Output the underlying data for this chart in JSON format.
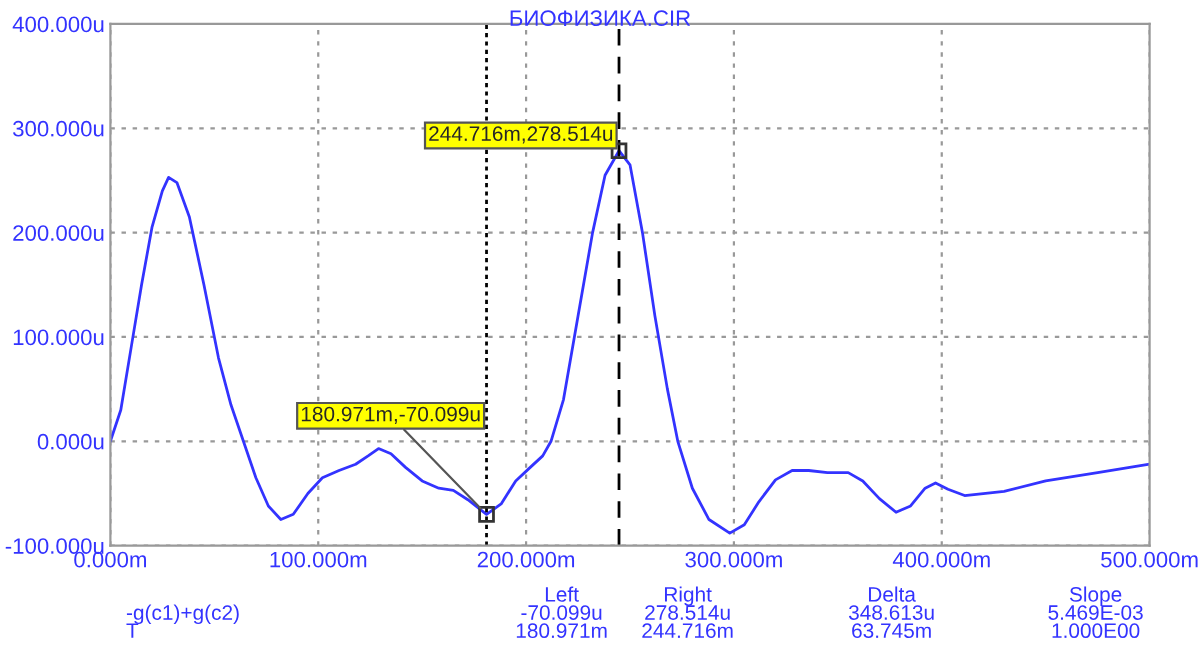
{
  "chart_data": {
    "type": "line",
    "title": "БИОФИЗИКА.CIR",
    "xlabel": "T",
    "x": [
      0,
      5,
      10,
      15,
      20,
      25,
      28,
      32,
      38,
      45,
      52,
      58,
      64,
      70,
      76,
      82,
      88,
      95,
      102,
      110,
      118,
      124,
      129,
      135,
      142,
      150,
      158,
      165,
      172,
      180.971,
      188,
      195,
      202,
      208,
      212,
      218,
      225,
      232,
      238,
      244.716,
      250,
      256,
      262,
      268,
      273,
      280,
      288,
      298,
      305,
      312,
      320,
      328,
      336,
      345,
      355,
      362,
      370,
      378,
      385,
      392,
      397,
      403,
      411,
      430,
      450,
      475,
      500
    ],
    "series": [
      {
        "name": "-g(c1)+g(c2)",
        "color": "#3333ff",
        "values": [
          0,
          30,
          90,
          150,
          205,
          240,
          253,
          248,
          215,
          150,
          80,
          35,
          0,
          -35,
          -62,
          -75,
          -70,
          -50,
          -35,
          -28,
          -22,
          -14,
          -7,
          -12,
          -25,
          -38,
          -45,
          -47,
          -56,
          -70.099,
          -60,
          -38,
          -25,
          -14,
          0,
          40,
          120,
          200,
          255,
          278.514,
          265,
          200,
          120,
          50,
          0,
          -45,
          -75,
          -88,
          -80,
          -58,
          -37,
          -28,
          -28,
          -30,
          -30,
          -38,
          -55,
          -68,
          -62,
          -45,
          -40,
          -46,
          -52,
          -48,
          -38,
          -30,
          -22
        ]
      }
    ],
    "xlim": [
      0,
      500
    ],
    "ylim": [
      -100,
      400
    ],
    "xticks": [
      {
        "value": 0,
        "label": "0.000m"
      },
      {
        "value": 100,
        "label": "100.000m"
      },
      {
        "value": 200,
        "label": "200.000m"
      },
      {
        "value": 300,
        "label": "300.000m"
      },
      {
        "value": 400,
        "label": "400.000m"
      },
      {
        "value": 500,
        "label": "500.000m"
      }
    ],
    "yticks": [
      {
        "value": -100,
        "label": "-100.000u"
      },
      {
        "value": 0,
        "label": "0.000u"
      },
      {
        "value": 100,
        "label": "100.000u"
      },
      {
        "value": 200,
        "label": "200.000u"
      },
      {
        "value": 300,
        "label": "300.000u"
      },
      {
        "value": 400,
        "label": "400.000u"
      }
    ],
    "grid": true,
    "marker": "none",
    "line_style": "solid",
    "ref_lines": [
      {
        "axis": "x",
        "value": 180.971,
        "color": "#000000",
        "line_style": "dotted"
      },
      {
        "axis": "x",
        "value": 244.716,
        "color": "#000000",
        "line_style": "dashed"
      }
    ],
    "annotations": [
      {
        "text": "180.971m,-70.099u",
        "x": 180.971,
        "y": -70.099
      },
      {
        "text": "244.716m,278.514u",
        "x": 244.716,
        "y": 278.514
      },
      "Left",
      "Right",
      "Delta",
      "Slope",
      "-70.099u",
      "278.514u",
      "348.613u",
      "5.469E-03",
      "180.971m",
      "244.716m",
      "63.745m",
      "1.000E00"
    ]
  }
}
